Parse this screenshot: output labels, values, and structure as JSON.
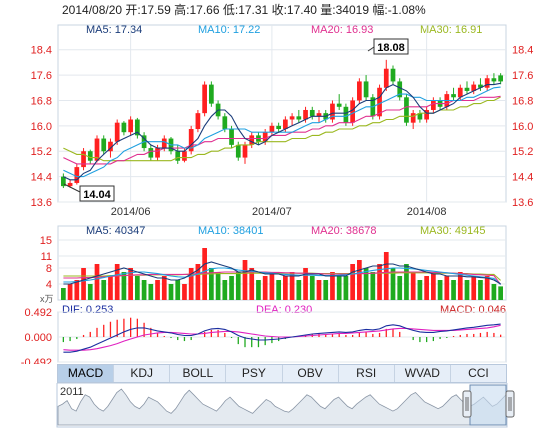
{
  "header": {
    "date": "2014/08/20",
    "open_label": "开:",
    "open": "17.59",
    "high_label": "高:",
    "high": "17.66",
    "low_label": "低:",
    "low": "17.31",
    "close_label": "收:",
    "close": "17.40",
    "volume_label": "量:",
    "volume": "34019",
    "change_label": "幅:",
    "change": "-1.08%"
  },
  "ma_legend": {
    "ma5": "MA5: 17.34",
    "ma10": "MA10: 17.22",
    "ma20": "MA20: 16.93",
    "ma30": "MA30: 16.91"
  },
  "vol_legend": {
    "ma5": "MA5: 40347",
    "ma10": "MA10: 38401",
    "ma20": "MA20: 38678",
    "ma30": "MA30: 49145"
  },
  "macd_legend": {
    "dif": "DIF: 0.253",
    "dea": "DEA: 0.230",
    "macd": "MACD: 0.046"
  },
  "annotations": {
    "max": "18.08",
    "min": "14.04"
  },
  "volume_unit": "x万",
  "navigator_year": "2011",
  "tabs": [
    "MACD",
    "KDJ",
    "BOLL",
    "PSY",
    "OBV",
    "RSI",
    "WVAD",
    "CCI"
  ],
  "active_tab": "MACD",
  "colors": {
    "up": "#ff2020",
    "down": "#1faa1f",
    "ma5": "#1a3c7a",
    "ma10": "#20a0e0",
    "ma20": "#e03090",
    "ma30": "#9bb820",
    "dif": "#1a2ea0",
    "dea": "#e020c0"
  },
  "chart_data": [
    {
      "type": "candlestick",
      "x_labels": [
        "2014/06",
        "2014/07",
        "2014/08"
      ],
      "ylim": [
        13.6,
        18.8
      ],
      "y_ticks": [
        "18.4",
        "17.6",
        "16.8",
        "16.0",
        "15.2",
        "14.4",
        "13.6"
      ],
      "grid": true,
      "series": [
        {
          "name": "MA5",
          "values_ref": "ma5"
        },
        {
          "name": "MA10",
          "values_ref": "ma10"
        },
        {
          "name": "MA20",
          "values_ref": "ma20"
        },
        {
          "name": "MA30",
          "values_ref": "ma30"
        }
      ],
      "ohlc": [
        [
          14.4,
          14.5,
          14.04,
          14.1
        ],
        [
          14.1,
          14.3,
          14.05,
          14.2
        ],
        [
          14.2,
          14.8,
          14.15,
          14.7
        ],
        [
          14.7,
          15.3,
          14.6,
          15.2
        ],
        [
          15.2,
          15.25,
          14.8,
          14.9
        ],
        [
          14.9,
          15.7,
          14.85,
          15.6
        ],
        [
          15.6,
          15.7,
          15.1,
          15.2
        ],
        [
          15.2,
          15.6,
          15.0,
          15.5
        ],
        [
          15.5,
          16.2,
          15.4,
          16.1
        ],
        [
          16.1,
          16.15,
          15.7,
          15.8
        ],
        [
          15.8,
          16.3,
          15.7,
          16.2
        ],
        [
          16.2,
          16.25,
          15.6,
          15.7
        ],
        [
          15.7,
          15.8,
          15.2,
          15.3
        ],
        [
          15.3,
          15.4,
          14.9,
          15.0
        ],
        [
          15.0,
          15.4,
          14.9,
          15.3
        ],
        [
          15.3,
          15.7,
          15.2,
          15.6
        ],
        [
          15.6,
          15.65,
          15.1,
          15.2
        ],
        [
          15.2,
          15.4,
          14.8,
          14.9
        ],
        [
          14.9,
          15.3,
          14.85,
          15.2
        ],
        [
          15.2,
          16.0,
          15.1,
          15.9
        ],
        [
          15.9,
          16.5,
          15.8,
          16.4
        ],
        [
          16.4,
          17.4,
          16.3,
          17.3
        ],
        [
          17.3,
          17.4,
          16.6,
          16.7
        ],
        [
          16.7,
          16.8,
          16.2,
          16.3
        ],
        [
          16.3,
          16.4,
          15.8,
          15.9
        ],
        [
          15.9,
          16.0,
          15.3,
          15.4
        ],
        [
          15.4,
          15.5,
          14.9,
          15.0
        ],
        [
          15.0,
          15.5,
          14.8,
          15.4
        ],
        [
          15.4,
          15.8,
          15.3,
          15.7
        ],
        [
          15.7,
          15.8,
          15.4,
          15.5
        ],
        [
          15.5,
          15.9,
          15.4,
          15.8
        ],
        [
          15.8,
          16.1,
          15.7,
          16.0
        ],
        [
          16.0,
          16.1,
          15.8,
          15.9
        ],
        [
          15.9,
          16.3,
          15.8,
          16.2
        ],
        [
          16.2,
          16.4,
          16.0,
          16.3
        ],
        [
          16.3,
          16.5,
          16.1,
          16.2
        ],
        [
          16.2,
          16.6,
          16.1,
          16.5
        ],
        [
          16.5,
          16.6,
          16.2,
          16.3
        ],
        [
          16.3,
          16.5,
          16.1,
          16.4
        ],
        [
          16.4,
          16.5,
          16.1,
          16.2
        ],
        [
          16.2,
          16.8,
          16.1,
          16.7
        ],
        [
          16.7,
          17.0,
          16.5,
          16.6
        ],
        [
          16.6,
          16.7,
          16.0,
          16.1
        ],
        [
          16.1,
          16.9,
          16.0,
          16.8
        ],
        [
          16.8,
          17.5,
          16.7,
          17.4
        ],
        [
          17.4,
          17.6,
          16.8,
          16.9
        ],
        [
          16.9,
          17.0,
          16.2,
          16.3
        ],
        [
          16.3,
          17.3,
          16.2,
          17.2
        ],
        [
          17.2,
          18.08,
          17.1,
          17.8
        ],
        [
          17.8,
          17.9,
          17.3,
          17.4
        ],
        [
          17.4,
          17.5,
          16.8,
          16.9
        ],
        [
          16.9,
          17.0,
          16.0,
          16.1
        ],
        [
          16.1,
          16.5,
          15.9,
          16.4
        ],
        [
          16.4,
          16.5,
          16.1,
          16.2
        ],
        [
          16.2,
          16.6,
          16.1,
          16.5
        ],
        [
          16.5,
          16.9,
          16.4,
          16.8
        ],
        [
          16.8,
          16.9,
          16.5,
          16.6
        ],
        [
          16.6,
          17.1,
          16.5,
          17.0
        ],
        [
          17.0,
          17.2,
          16.8,
          16.9
        ],
        [
          16.9,
          17.3,
          16.8,
          17.2
        ],
        [
          17.2,
          17.4,
          17.0,
          17.1
        ],
        [
          17.1,
          17.4,
          17.0,
          17.3
        ],
        [
          17.3,
          17.5,
          17.1,
          17.2
        ],
        [
          17.2,
          17.6,
          17.1,
          17.5
        ],
        [
          17.5,
          17.66,
          17.3,
          17.4
        ],
        [
          17.59,
          17.66,
          17.31,
          17.4
        ]
      ],
      "ma5": [
        14.4,
        14.3,
        14.3,
        14.5,
        14.6,
        14.9,
        15.1,
        15.3,
        15.5,
        15.6,
        15.7,
        15.8,
        15.6,
        15.4,
        15.3,
        15.3,
        15.3,
        15.2,
        15.2,
        15.4,
        15.6,
        16.0,
        16.3,
        16.5,
        16.5,
        16.3,
        15.9,
        15.6,
        15.5,
        15.4,
        15.5,
        15.7,
        15.8,
        15.9,
        16.0,
        16.1,
        16.2,
        16.3,
        16.3,
        16.3,
        16.4,
        16.4,
        16.4,
        16.5,
        16.7,
        16.8,
        16.8,
        16.9,
        17.2,
        17.3,
        17.2,
        17.1,
        16.9,
        16.6,
        16.4,
        16.4,
        16.5,
        16.6,
        16.7,
        16.9,
        17.0,
        17.1,
        17.2,
        17.3,
        17.3,
        17.34
      ],
      "ma10": [
        14.6,
        14.5,
        14.4,
        14.4,
        14.5,
        14.6,
        14.7,
        14.9,
        15.0,
        15.2,
        15.3,
        15.4,
        15.5,
        15.5,
        15.5,
        15.5,
        15.4,
        15.4,
        15.3,
        15.3,
        15.4,
        15.6,
        15.7,
        15.8,
        15.9,
        15.9,
        15.9,
        15.9,
        15.8,
        15.8,
        15.8,
        15.8,
        15.8,
        15.8,
        15.8,
        15.9,
        16.0,
        16.1,
        16.1,
        16.2,
        16.3,
        16.3,
        16.3,
        16.4,
        16.5,
        16.6,
        16.6,
        16.7,
        16.8,
        16.9,
        17.0,
        17.0,
        16.9,
        16.9,
        16.8,
        16.8,
        16.8,
        16.8,
        16.8,
        16.8,
        16.9,
        16.9,
        17.0,
        17.1,
        17.2,
        17.22
      ],
      "ma20": [
        15.0,
        14.9,
        14.8,
        14.8,
        14.8,
        14.8,
        14.8,
        14.8,
        14.9,
        14.9,
        15.0,
        15.1,
        15.1,
        15.2,
        15.2,
        15.3,
        15.3,
        15.3,
        15.3,
        15.4,
        15.4,
        15.5,
        15.5,
        15.6,
        15.6,
        15.6,
        15.6,
        15.6,
        15.6,
        15.6,
        15.6,
        15.7,
        15.7,
        15.7,
        15.8,
        15.8,
        15.8,
        15.9,
        15.9,
        16.0,
        16.0,
        16.1,
        16.1,
        16.1,
        16.2,
        16.3,
        16.3,
        16.4,
        16.5,
        16.5,
        16.5,
        16.6,
        16.6,
        16.6,
        16.6,
        16.7,
        16.7,
        16.7,
        16.8,
        16.8,
        16.8,
        16.8,
        16.9,
        16.9,
        16.9,
        16.93
      ],
      "ma30": [
        15.3,
        15.2,
        15.1,
        15.1,
        15.0,
        15.0,
        14.9,
        14.9,
        14.9,
        14.9,
        14.9,
        14.9,
        14.9,
        14.9,
        14.9,
        14.9,
        14.9,
        15.0,
        15.0,
        15.0,
        15.1,
        15.1,
        15.2,
        15.2,
        15.3,
        15.3,
        15.4,
        15.4,
        15.4,
        15.5,
        15.5,
        15.5,
        15.5,
        15.5,
        15.6,
        15.6,
        15.6,
        15.7,
        15.7,
        15.8,
        15.8,
        15.9,
        15.9,
        15.9,
        16.0,
        16.0,
        16.1,
        16.1,
        16.2,
        16.2,
        16.3,
        16.3,
        16.3,
        16.4,
        16.4,
        16.4,
        16.5,
        16.5,
        16.5,
        16.6,
        16.6,
        16.7,
        16.7,
        16.8,
        16.8,
        16.91
      ]
    },
    {
      "type": "bar",
      "title": "volume",
      "ylim": [
        0,
        15
      ],
      "y_ticks": [
        "15",
        "11",
        "8",
        "4"
      ],
      "volumes": [
        3,
        4,
        5,
        8,
        4,
        9,
        5,
        6,
        9,
        7,
        8,
        6,
        5,
        4,
        5,
        6,
        4,
        5,
        4,
        8,
        9,
        13,
        8,
        7,
        5,
        6,
        7,
        10,
        8,
        5,
        6,
        7,
        5,
        6,
        7,
        5,
        8,
        6,
        5,
        5,
        7,
        6,
        6,
        9,
        10,
        8,
        7,
        9,
        12,
        8,
        6,
        9,
        7,
        5,
        6,
        7,
        5,
        6,
        5,
        7,
        5,
        6,
        5,
        6,
        4,
        3.4
      ],
      "ma5": [
        4,
        4,
        4.5,
        5,
        5.5,
        6,
        6.5,
        7,
        7.5,
        8,
        7.5,
        7,
        6.5,
        6,
        5.5,
        5.5,
        5,
        5,
        5.5,
        6.5,
        7.5,
        9,
        9.5,
        9,
        8.5,
        8,
        7,
        7,
        7.5,
        7,
        6.5,
        6.5,
        6.5,
        6,
        6,
        6,
        6.5,
        6.5,
        6.5,
        6,
        6,
        6,
        6,
        7,
        7.5,
        8,
        8.5,
        8.5,
        9,
        9,
        8.5,
        8.5,
        8,
        7.5,
        7,
        6.5,
        6.5,
        6,
        6,
        6,
        5.8,
        5.8,
        5.6,
        5.5,
        5,
        4.03
      ],
      "ma10": [
        4.5,
        4.5,
        4.6,
        4.8,
        5,
        5.3,
        5.6,
        6,
        6.3,
        6.6,
        6.8,
        7,
        7,
        6.8,
        6.6,
        6.3,
        6,
        5.8,
        5.7,
        6,
        6.5,
        7.2,
        7.8,
        8,
        8,
        7.8,
        7.5,
        7.3,
        7.2,
        7,
        6.8,
        6.7,
        6.5,
        6.4,
        6.3,
        6.2,
        6.2,
        6.2,
        6.1,
        6.1,
        6.1,
        6.2,
        6.3,
        6.5,
        6.8,
        7.1,
        7.4,
        7.6,
        7.8,
        8,
        8,
        7.9,
        7.8,
        7.6,
        7.4,
        7.2,
        7,
        6.8,
        6.6,
        6.4,
        6.2,
        6,
        5.8,
        5.6,
        5.4,
        3.84
      ],
      "ma20": [
        5.5,
        5.5,
        5.5,
        5.6,
        5.6,
        5.7,
        5.8,
        5.9,
        6,
        6.1,
        6.2,
        6.3,
        6.3,
        6.4,
        6.4,
        6.4,
        6.4,
        6.4,
        6.4,
        6.5,
        6.6,
        6.7,
        6.8,
        6.9,
        7,
        7,
        7,
        7,
        7,
        7,
        7,
        6.9,
        6.9,
        6.8,
        6.8,
        6.7,
        6.7,
        6.6,
        6.6,
        6.5,
        6.5,
        6.5,
        6.5,
        6.5,
        6.6,
        6.6,
        6.7,
        6.8,
        6.9,
        7,
        7,
        7,
        7,
        7,
        7,
        6.9,
        6.9,
        6.8,
        6.7,
        6.6,
        6.5,
        6.4,
        6.3,
        6.2,
        6.1,
        3.87
      ],
      "ma30": [
        6,
        6,
        6,
        6,
        6,
        6,
        6,
        6.1,
        6.1,
        6.1,
        6.2,
        6.2,
        6.2,
        6.3,
        6.3,
        6.3,
        6.3,
        6.3,
        6.4,
        6.4,
        6.4,
        6.5,
        6.5,
        6.6,
        6.6,
        6.6,
        6.6,
        6.7,
        6.7,
        6.7,
        6.7,
        6.7,
        6.7,
        6.7,
        6.7,
        6.7,
        6.7,
        6.7,
        6.6,
        6.6,
        6.6,
        6.6,
        6.6,
        6.6,
        6.6,
        6.6,
        6.7,
        6.7,
        6.7,
        6.7,
        6.8,
        6.8,
        6.8,
        6.8,
        6.8,
        6.8,
        6.7,
        6.7,
        6.7,
        6.6,
        6.6,
        6.5,
        6.5,
        6.4,
        6.4,
        4.91
      ]
    },
    {
      "type": "line",
      "title": "MACD",
      "ylim": [
        -0.492,
        0.492
      ],
      "y_ticks": [
        "0.492",
        "0.000",
        "-0.492"
      ],
      "dif": [
        -0.3,
        -0.3,
        -0.28,
        -0.24,
        -0.2,
        -0.14,
        -0.08,
        -0.02,
        0.04,
        0.1,
        0.15,
        0.18,
        0.18,
        0.15,
        0.12,
        0.1,
        0.08,
        0.05,
        0.03,
        0.03,
        0.06,
        0.12,
        0.16,
        0.17,
        0.15,
        0.1,
        0.03,
        -0.02,
        -0.04,
        -0.06,
        -0.06,
        -0.05,
        -0.04,
        -0.02,
        0.0,
        0.02,
        0.04,
        0.06,
        0.07,
        0.08,
        0.09,
        0.1,
        0.09,
        0.1,
        0.13,
        0.15,
        0.14,
        0.16,
        0.22,
        0.24,
        0.22,
        0.17,
        0.13,
        0.1,
        0.09,
        0.09,
        0.11,
        0.12,
        0.14,
        0.16,
        0.18,
        0.19,
        0.21,
        0.23,
        0.24,
        0.253
      ],
      "dea": [
        -0.25,
        -0.26,
        -0.26,
        -0.26,
        -0.25,
        -0.23,
        -0.2,
        -0.17,
        -0.13,
        -0.08,
        -0.04,
        0.0,
        0.04,
        0.06,
        0.08,
        0.09,
        0.09,
        0.08,
        0.07,
        0.06,
        0.06,
        0.07,
        0.09,
        0.1,
        0.11,
        0.11,
        0.1,
        0.08,
        0.06,
        0.04,
        0.02,
        0.01,
        0.0,
        0.0,
        0.0,
        0.01,
        0.02,
        0.03,
        0.04,
        0.05,
        0.06,
        0.07,
        0.07,
        0.08,
        0.09,
        0.1,
        0.11,
        0.12,
        0.14,
        0.16,
        0.17,
        0.17,
        0.16,
        0.15,
        0.14,
        0.13,
        0.13,
        0.13,
        0.13,
        0.14,
        0.15,
        0.16,
        0.17,
        0.18,
        0.2,
        0.23
      ],
      "macd": [
        -0.1,
        -0.08,
        -0.04,
        0.04,
        0.1,
        0.18,
        0.24,
        0.3,
        0.34,
        0.36,
        0.38,
        0.36,
        0.28,
        0.18,
        0.08,
        0.02,
        -0.02,
        -0.06,
        -0.08,
        -0.06,
        0.0,
        0.1,
        0.14,
        0.14,
        0.08,
        -0.02,
        -0.14,
        -0.2,
        -0.2,
        -0.2,
        -0.16,
        -0.12,
        -0.08,
        -0.04,
        0.0,
        0.02,
        0.04,
        0.06,
        0.06,
        0.06,
        0.06,
        0.06,
        0.04,
        0.04,
        0.08,
        0.1,
        0.06,
        0.08,
        0.16,
        0.16,
        0.1,
        0.0,
        -0.06,
        -0.1,
        -0.1,
        -0.08,
        -0.04,
        -0.02,
        0.02,
        0.04,
        0.06,
        0.06,
        0.08,
        0.1,
        0.08,
        0.046
      ]
    },
    {
      "type": "area",
      "title": "navigator",
      "values": [
        40,
        42,
        45,
        38,
        36,
        44,
        50,
        48,
        42,
        38,
        36,
        40,
        46,
        52,
        55,
        50,
        44,
        40,
        38,
        42,
        48,
        46,
        44,
        40,
        36,
        34,
        38,
        44,
        50,
        54,
        50,
        46,
        42,
        40,
        38,
        36,
        40,
        45,
        48,
        44,
        40,
        38,
        36,
        34,
        38,
        42,
        46,
        44,
        40,
        38,
        36,
        35,
        38,
        42,
        46,
        50,
        48,
        44,
        40,
        38,
        42,
        46,
        48,
        44,
        40,
        38,
        42,
        45,
        48,
        50,
        46,
        42,
        40,
        38,
        36,
        38,
        42,
        46,
        50,
        52,
        48,
        44,
        42,
        40,
        38,
        40,
        44,
        48,
        50,
        46,
        42,
        40,
        42,
        45,
        48,
        44,
        40,
        42,
        46,
        50
      ]
    }
  ]
}
